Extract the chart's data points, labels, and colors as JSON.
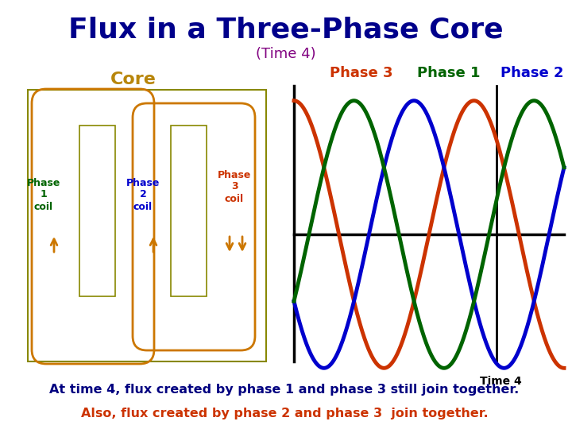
{
  "title": "Flux in a Three-Phase Core",
  "subtitle": "(Time 4)",
  "title_color": "#00008B",
  "subtitle_color": "#800080",
  "core_label": "Core",
  "core_label_color": "#B8860B",
  "phase_labels": [
    "Phase 3",
    "Phase 1",
    "Phase 2"
  ],
  "phase_label_colors": [
    "#CC3300",
    "#006400",
    "#0000CD"
  ],
  "coil_label_colors": [
    "#006400",
    "#0000CD",
    "#CC3300"
  ],
  "time_label": "Time 4",
  "line_colors": {
    "phase1": "#006400",
    "phase2": "#0000CD",
    "phase3": "#CC3300"
  },
  "core_color": "#CC7700",
  "arrow_color": "#CC7700",
  "text1": "At time 4, flux created by phase 1 and phase 3 still join together.",
  "text2": "Also, flux created by phase 2 and phase 3  join together.",
  "text1_color": "#000080",
  "text2_color": "#CC3300",
  "bg_color": "#FFFFFF"
}
